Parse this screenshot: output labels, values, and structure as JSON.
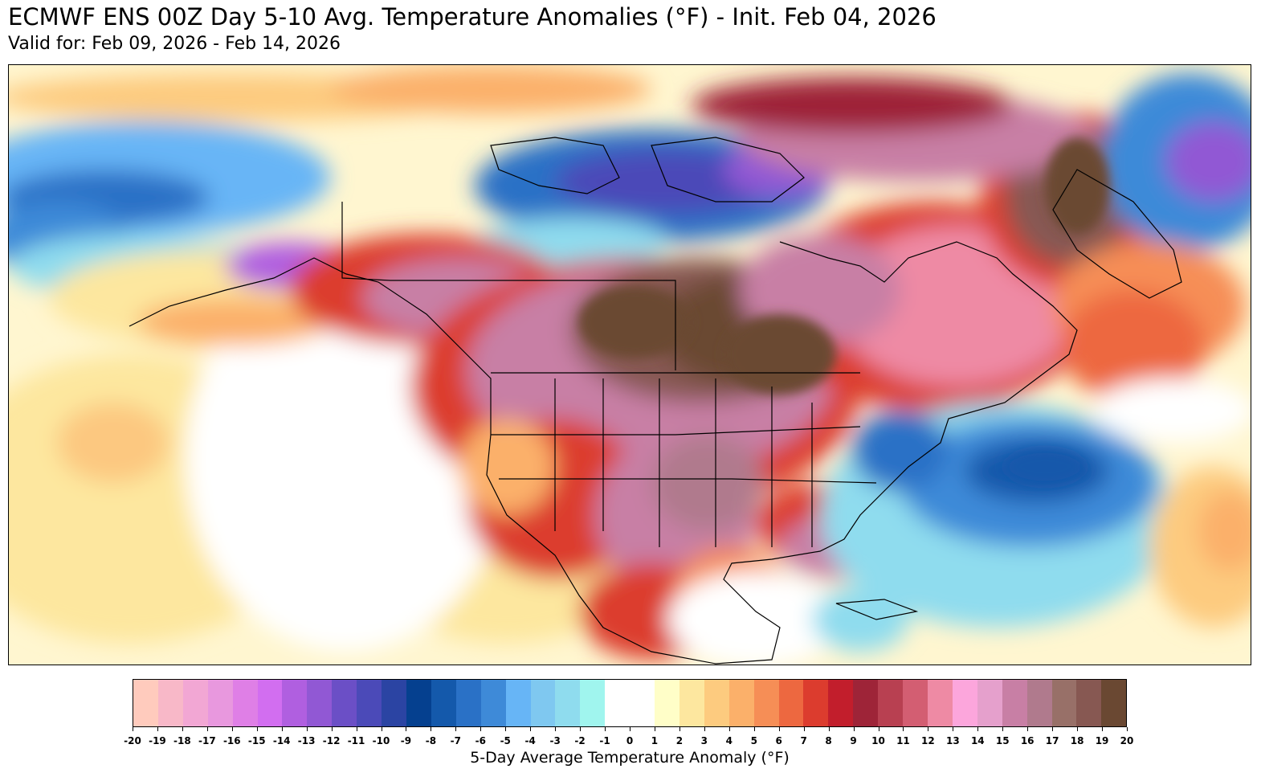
{
  "title": "ECMWF ENS 00Z Day 5-10 Avg. Temperature Anomalies (°F) - Init. Feb 04, 2026",
  "subtitle": "Valid for: Feb 09, 2026 - Feb 14, 2026",
  "colorbar": {
    "label": "5-Day Average Temperature Anomaly (°F)",
    "ticks": [
      "-20",
      "-19",
      "-18",
      "-17",
      "-16",
      "-15",
      "-14",
      "-13",
      "-12",
      "-11",
      "-10",
      "-9",
      "-8",
      "-7",
      "-6",
      "-5",
      "-4",
      "-3",
      "-2",
      "-1",
      "0",
      "1",
      "2",
      "3",
      "4",
      "5",
      "6",
      "7",
      "8",
      "9",
      "10",
      "11",
      "12",
      "13",
      "14",
      "15",
      "16",
      "17",
      "18",
      "19",
      "20"
    ],
    "colors": [
      "#ffcbbd",
      "#f8b8c8",
      "#f2a7d4",
      "#e898de",
      "#df7fe6",
      "#d26ef0",
      "#b05fe0",
      "#9158d4",
      "#6b4fc6",
      "#4b4ab8",
      "#2b44a3",
      "#05408f",
      "#1459ab",
      "#2a71c6",
      "#3e8ad8",
      "#67b5f6",
      "#7fc8f0",
      "#8fdcee",
      "#a0f5ee",
      "#ffffff",
      "#ffffff",
      "#fffec8",
      "#fde79f",
      "#fdcb7f",
      "#fbb06a",
      "#f68e56",
      "#ed6840",
      "#dc3c2e",
      "#c21e2c",
      "#9e2438",
      "#b84051",
      "#d35e72",
      "#ee8aa4",
      "#fca6dc",
      "#e5a0cc",
      "#c87fa5",
      "#b07a8d",
      "#987068",
      "#875852",
      "#6a4832"
    ]
  },
  "map": {
    "colors": {
      "ocean_neutral": "#ffffff",
      "warm_light": "#fffec8",
      "warm_tan": "#fde79f",
      "warm_orange": "#fbb06a",
      "warm_red": "#dc3c2e",
      "warm_pink": "#ee8aa4",
      "warm_mauve": "#b07a8d",
      "warm_brown": "#6a4832",
      "cold_cyan": "#8fdcee",
      "cold_blue": "#3e8ad8",
      "cold_dark": "#1459ab",
      "cold_purple": "#b05fe0"
    }
  }
}
